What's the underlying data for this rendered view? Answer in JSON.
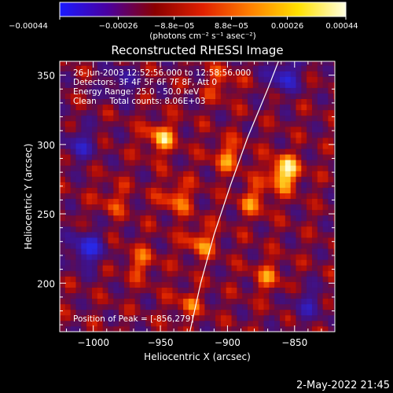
{
  "chart_data": {
    "type": "heatmap",
    "title": "Reconstructed RHESSI Image",
    "xlabel": "Heliocentric X (arcsec)",
    "ylabel": "Heliocentric Y (arcsec)",
    "xlim": [
      -1025,
      -820
    ],
    "ylim": [
      165,
      360
    ],
    "x_ticks": [
      -1000,
      -950,
      -900,
      -850
    ],
    "x_tick_labels": [
      "−1000",
      "−950",
      "−900",
      "−850"
    ],
    "y_ticks": [
      200,
      250,
      300,
      350
    ],
    "y_tick_labels": [
      "200",
      "250",
      "300",
      "350"
    ],
    "colorbar": {
      "range": [
        -0.00044,
        0.00044
      ],
      "ticks": [
        -0.00044,
        -0.00026,
        -8.8e-05,
        8.8e-05,
        0.00026,
        0.00044
      ],
      "tick_labels": [
        "−0.00044",
        "−0.00026",
        "−8.8e−05",
        "8.8e−05",
        "0.00026",
        "0.00044"
      ],
      "units_label": "(photons cm⁻² s⁻¹ asec⁻²)",
      "colors": [
        "#1a1aff",
        "#4a00a0",
        "#8a0000",
        "#e02000",
        "#ff8000",
        "#ffe000",
        "#ffffe0"
      ]
    },
    "info_lines": [
      "26-Jun-2003 12:52:56.000 to 12:58:56.000",
      "Detectors: 3F 4F 5F 6F 7F 8F, Att 0",
      "Energy Range: 25.0 - 50.0 keV",
      "Clean     Total counts: 8.06E+03"
    ],
    "peak_label": "Position of Peak = [-856,279]",
    "peak": [
      -856,
      279
    ],
    "limb": [
      [
        -928,
        165
      ],
      [
        -920,
        200
      ],
      [
        -910,
        235
      ],
      [
        -898,
        270
      ],
      [
        -885,
        305
      ],
      [
        -870,
        340
      ],
      [
        -862,
        360
      ]
    ],
    "hot_spots": [
      {
        "x": -858,
        "y": 280,
        "level": 1.0
      },
      {
        "x": -950,
        "y": 305,
        "level": 0.7
      },
      {
        "x": -900,
        "y": 292,
        "level": 0.55
      },
      {
        "x": -938,
        "y": 262,
        "level": 0.55
      },
      {
        "x": -880,
        "y": 260,
        "level": 0.5
      },
      {
        "x": -965,
        "y": 215,
        "level": 0.45
      },
      {
        "x": -920,
        "y": 230,
        "level": 0.55
      },
      {
        "x": -870,
        "y": 205,
        "level": 0.45
      },
      {
        "x": -930,
        "y": 185,
        "level": 0.4
      },
      {
        "x": -985,
        "y": 260,
        "level": 0.35
      },
      {
        "x": -905,
        "y": 345,
        "level": 0.4
      }
    ],
    "cold_spots": [
      {
        "x": -1005,
        "y": 225,
        "level": 0.9
      },
      {
        "x": -858,
        "y": 350,
        "level": 0.8
      },
      {
        "x": -1010,
        "y": 300,
        "level": 0.6
      },
      {
        "x": -840,
        "y": 185,
        "level": 0.5
      },
      {
        "x": -980,
        "y": 345,
        "level": 0.5
      }
    ]
  },
  "timestamp": "2-May-2022 21:45"
}
